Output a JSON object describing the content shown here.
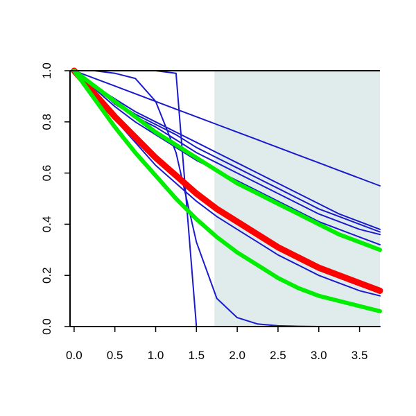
{
  "chart_data": {
    "type": "line",
    "title": "",
    "xlabel": "",
    "ylabel": "",
    "xlim": [
      -0.05,
      3.75
    ],
    "ylim": [
      0.0,
      1.0
    ],
    "x_ticks": [
      "0.0",
      "0.5",
      "1.0",
      "1.5",
      "2.0",
      "2.5",
      "3.0",
      "3.5"
    ],
    "y_ticks": [
      "0.0",
      "0.2",
      "0.4",
      "0.6",
      "0.8",
      "1.0"
    ],
    "grid": false,
    "legend": "none",
    "shaded_region": {
      "x_start": 1.72,
      "x_end": 3.75,
      "color": "#e0ecec"
    },
    "colors": {
      "blue": "#1a1acc",
      "red": "#ff0000",
      "green": "#00ee00",
      "axis": "#000000"
    },
    "x": [
      0.0,
      0.25,
      0.5,
      0.75,
      1.0,
      1.25,
      1.5,
      1.75,
      2.0,
      2.25,
      2.5,
      2.75,
      3.0,
      3.25,
      3.5,
      3.75
    ],
    "series": [
      {
        "color": "blue",
        "width": 2,
        "values": [
          1.0,
          1.0,
          1.0,
          1.0,
          1.0,
          0.99,
          0.0,
          0.0,
          0.0,
          0.0,
          0.0,
          0.0,
          0.0,
          0.0,
          0.0,
          0.0
        ]
      },
      {
        "color": "blue",
        "width": 2,
        "values": [
          1.0,
          1.0,
          0.99,
          0.97,
          0.88,
          0.68,
          0.33,
          0.11,
          0.035,
          0.01,
          0.003,
          0.001,
          0.0,
          0.0,
          0.0,
          0.0
        ]
      },
      {
        "color": "blue",
        "width": 2,
        "values": [
          1.0,
          0.97,
          0.94,
          0.91,
          0.88,
          0.85,
          0.82,
          0.79,
          0.76,
          0.73,
          0.7,
          0.67,
          0.64,
          0.61,
          0.58,
          0.55
        ]
      },
      {
        "color": "blue",
        "width": 2,
        "values": [
          1.0,
          0.94,
          0.89,
          0.84,
          0.8,
          0.76,
          0.72,
          0.68,
          0.64,
          0.6,
          0.56,
          0.52,
          0.48,
          0.44,
          0.41,
          0.38
        ]
      },
      {
        "color": "blue",
        "width": 2,
        "values": [
          1.0,
          0.94,
          0.88,
          0.83,
          0.79,
          0.75,
          0.7,
          0.66,
          0.62,
          0.58,
          0.54,
          0.5,
          0.46,
          0.43,
          0.4,
          0.37
        ]
      },
      {
        "color": "blue",
        "width": 2,
        "values": [
          1.0,
          0.94,
          0.87,
          0.82,
          0.78,
          0.73,
          0.68,
          0.64,
          0.6,
          0.56,
          0.52,
          0.48,
          0.44,
          0.41,
          0.38,
          0.36
        ]
      },
      {
        "color": "blue",
        "width": 2,
        "values": [
          1.0,
          0.93,
          0.86,
          0.8,
          0.75,
          0.7,
          0.65,
          0.61,
          0.57,
          0.53,
          0.49,
          0.45,
          0.41,
          0.38,
          0.35,
          0.32
        ]
      },
      {
        "color": "blue",
        "width": 2,
        "values": [
          1.0,
          0.91,
          0.82,
          0.73,
          0.65,
          0.58,
          0.51,
          0.45,
          0.4,
          0.35,
          0.3,
          0.26,
          0.22,
          0.19,
          0.16,
          0.13
        ]
      },
      {
        "color": "blue",
        "width": 2,
        "values": [
          1.0,
          0.9,
          0.81,
          0.72,
          0.63,
          0.56,
          0.49,
          0.43,
          0.38,
          0.33,
          0.28,
          0.24,
          0.2,
          0.17,
          0.14,
          0.12
        ]
      },
      {
        "color": "red",
        "width": 9,
        "values": [
          1.0,
          0.91,
          0.82,
          0.74,
          0.66,
          0.59,
          0.52,
          0.46,
          0.41,
          0.36,
          0.31,
          0.27,
          0.23,
          0.2,
          0.17,
          0.14
        ]
      },
      {
        "color": "green",
        "width": 6,
        "values": [
          1.0,
          0.94,
          0.88,
          0.82,
          0.76,
          0.71,
          0.66,
          0.61,
          0.56,
          0.52,
          0.48,
          0.44,
          0.4,
          0.36,
          0.33,
          0.3
        ]
      },
      {
        "color": "green",
        "width": 6,
        "values": [
          1.0,
          0.89,
          0.78,
          0.68,
          0.59,
          0.5,
          0.42,
          0.35,
          0.29,
          0.24,
          0.19,
          0.15,
          0.12,
          0.1,
          0.08,
          0.06
        ]
      }
    ]
  }
}
